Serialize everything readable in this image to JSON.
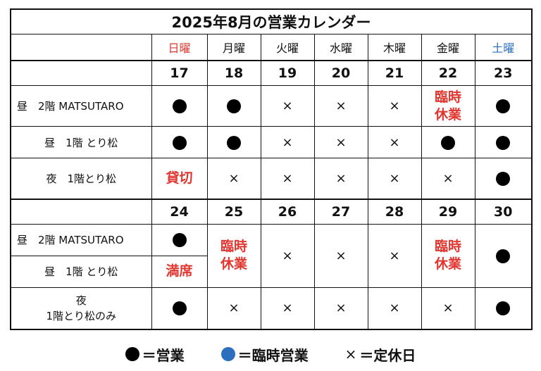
{
  "title": "2025年8月の営業カレンダー",
  "weekdays": [
    "日曜",
    "月曜",
    "火曜",
    "水曜",
    "木曜",
    "金曜",
    "土曜"
  ],
  "week1": {
    "dates": [
      "17",
      "18",
      "19",
      "20",
      "21",
      "22",
      "23"
    ],
    "rows": [
      {
        "label": "昼　2階 MATSUTARO"
      },
      {
        "label": "昼　1階 とり松"
      },
      {
        "label": "夜　1階とり松"
      }
    ]
  },
  "week2": {
    "dates": [
      "24",
      "25",
      "26",
      "27",
      "28",
      "29",
      "30"
    ],
    "rows": [
      {
        "label": "昼　2階 MATSUTARO"
      },
      {
        "label": "昼　1階 とり松"
      },
      {
        "label_line1": "夜",
        "label_line2": "1階とり松のみ"
      }
    ]
  },
  "marks": {
    "cross": "×",
    "rinji_line1": "臨時",
    "rinji_line2": "休業",
    "kashikiri": "貸切",
    "manseki": "満席"
  },
  "legend": {
    "open": "＝営業",
    "special_open": "＝臨時営業",
    "closed_mark": "×",
    "closed": "＝定休日"
  },
  "colors": {
    "red": "#e0362f",
    "blue": "#2c6fbe",
    "black": "#000000"
  }
}
